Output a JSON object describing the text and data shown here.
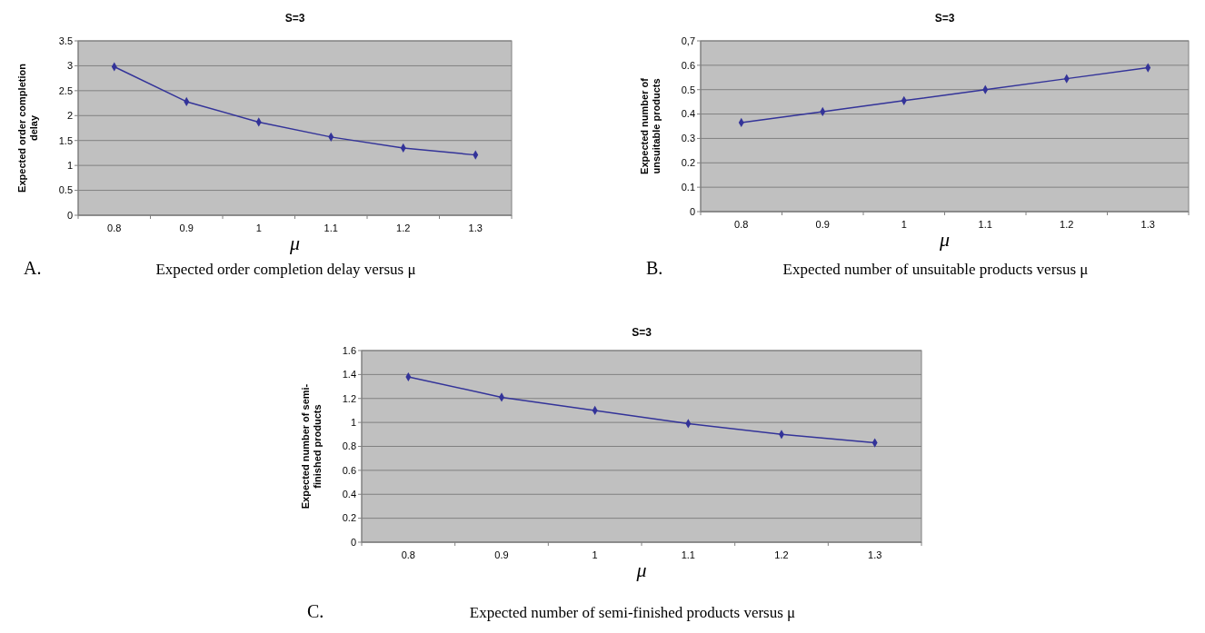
{
  "chart_data": [
    {
      "type": "line",
      "title": "S=3",
      "xlabel": "μ",
      "ylabel": "Expected order completion delay",
      "categories": [
        "0.8",
        "0.9",
        "1",
        "1.1",
        "1.2",
        "1.3"
      ],
      "series": [
        {
          "color": "#333399",
          "values": [
            2.98,
            2.28,
            1.87,
            1.57,
            1.35,
            1.21
          ]
        }
      ],
      "ylim": [
        0,
        3.5
      ],
      "yticks": [
        0,
        0.5,
        1,
        1.5,
        2,
        2.5,
        3,
        3.5
      ],
      "grid": "y",
      "marker": "diamond",
      "annotations": [
        "A.",
        "Expected order completion delay versus μ"
      ]
    },
    {
      "type": "line",
      "title": "S=3",
      "xlabel": "μ",
      "ylabel": "Expected number of unsuitable products",
      "categories": [
        "0.8",
        "0.9",
        "1",
        "1.1",
        "1.2",
        "1.3"
      ],
      "series": [
        {
          "color": "#333399",
          "values": [
            0.365,
            0.41,
            0.455,
            0.5,
            0.545,
            0.59
          ]
        }
      ],
      "ylim": [
        0,
        0.7
      ],
      "yticks": [
        0,
        0.1,
        0.2,
        0.3,
        0.4,
        0.5,
        0.6,
        {
          "value": 0.7,
          "label": "0,7"
        }
      ],
      "grid": "y",
      "marker": "diamond",
      "annotations": [
        "B.",
        "Expected number of unsuitable products versus μ"
      ]
    },
    {
      "type": "line",
      "title": "S=3",
      "xlabel": "μ",
      "ylabel": "Expected number of semi-finished products",
      "categories": [
        "0.8",
        "0.9",
        "1",
        "1.1",
        "1.2",
        "1.3"
      ],
      "series": [
        {
          "color": "#333399",
          "values": [
            1.38,
            1.21,
            1.1,
            0.99,
            0.9,
            0.83
          ]
        }
      ],
      "ylim": [
        0,
        1.6
      ],
      "yticks": [
        0,
        0.2,
        0.4,
        0.6,
        0.8,
        1,
        1.2,
        1.4,
        1.6
      ],
      "grid": "y",
      "marker": "diamond",
      "annotations": [
        "C.",
        "Expected number of semi-finished products versus μ"
      ]
    }
  ]
}
